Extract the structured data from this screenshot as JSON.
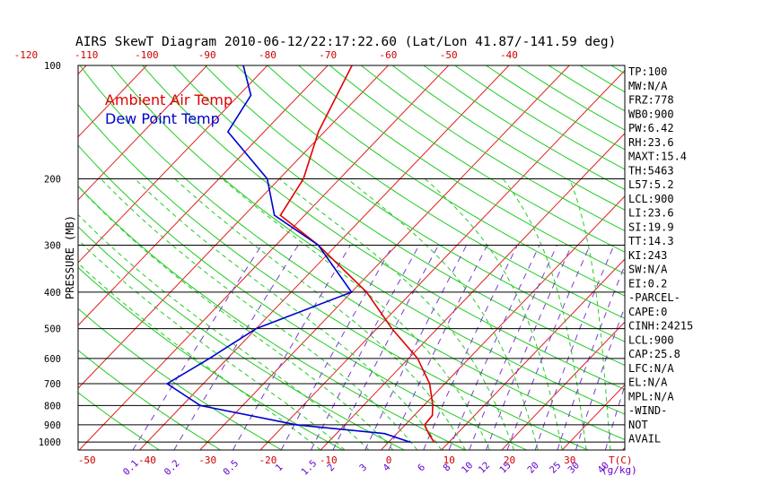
{
  "chart_data": {
    "type": "line",
    "title": "AIRS SkewT Diagram 2010-06-12/22:17:22.60 (Lat/Lon 41.87/-141.59 deg)",
    "ylabel": "PRESSURE (MB)",
    "x_unit_label": "T(C)",
    "mixing_unit_label": "(g/kg)",
    "pressure_ticks": [
      100,
      200,
      300,
      400,
      500,
      600,
      700,
      800,
      900,
      1000
    ],
    "bottom_temp_ticks": [
      -50,
      -40,
      -30,
      -20,
      -10,
      0,
      10,
      20,
      30
    ],
    "top_temp_ticks": [
      -120,
      -110,
      -100,
      -90,
      -80,
      -70,
      -60,
      -50,
      -40
    ],
    "mixing_ratio_labels": [
      "0.1",
      "0.2",
      "0.5",
      "1",
      "1.5",
      "2",
      "3",
      "4",
      "6",
      "8",
      "10",
      "12",
      "15",
      "20",
      "25",
      "30",
      "40"
    ],
    "mixing_ratio_values": [
      0.1,
      0.2,
      0.5,
      1,
      1.5,
      2,
      3,
      4,
      6,
      8,
      10,
      12,
      15,
      20,
      25,
      30,
      40
    ],
    "legend": [
      "Ambient Air Temp",
      "Dew Point Temp"
    ],
    "series": [
      {
        "name": "Ambient Air Temp",
        "color": "#e00000",
        "points": [
          {
            "p": 1000,
            "t": 7.5
          },
          {
            "p": 950,
            "t": 5.3
          },
          {
            "p": 900,
            "t": 3.2
          },
          {
            "p": 850,
            "t": 3.0
          },
          {
            "p": 800,
            "t": 1.5
          },
          {
            "p": 700,
            "t": -2.5
          },
          {
            "p": 600,
            "t": -8.5
          },
          {
            "p": 500,
            "t": -17.5
          },
          {
            "p": 400,
            "t": -27.5
          },
          {
            "p": 300,
            "t": -43
          },
          {
            "p": 250,
            "t": -54
          },
          {
            "p": 200,
            "t": -56
          },
          {
            "p": 150,
            "t": -61
          },
          {
            "p": 100,
            "t": -66
          }
        ]
      },
      {
        "name": "Dew Point Temp",
        "color": "#0000d0",
        "points": [
          {
            "p": 1000,
            "t": 3.5
          },
          {
            "p": 950,
            "t": -2
          },
          {
            "p": 900,
            "t": -18
          },
          {
            "p": 800,
            "t": -37
          },
          {
            "p": 700,
            "t": -46
          },
          {
            "p": 600,
            "t": -43
          },
          {
            "p": 500,
            "t": -40
          },
          {
            "p": 400,
            "t": -30
          },
          {
            "p": 300,
            "t": -43
          },
          {
            "p": 250,
            "t": -55
          },
          {
            "p": 200,
            "t": -62
          },
          {
            "p": 150,
            "t": -76
          },
          {
            "p": 120,
            "t": -78
          },
          {
            "p": 100,
            "t": -84
          }
        ]
      }
    ],
    "indices": [
      "TP:100",
      "MW:N/A",
      "FRZ:778",
      "WB0:900",
      "PW:6.42",
      "RH:23.6",
      "MAXT:15.4",
      "TH:5463",
      "L57:5.2",
      "LCL:900",
      "LI:23.6",
      "SI:19.9",
      "TT:14.3",
      "KI:243",
      "SW:N/A",
      "EI:0.2",
      "-PARCEL-",
      "CAPE:0",
      "CINH:24215",
      "LCL:900",
      "CAP:25.8",
      "LFC:N/A",
      "EL:N/A",
      "MPL:N/A",
      "-WIND-",
      "NOT",
      "AVAIL"
    ],
    "grid": true,
    "legend_position": "top-left"
  }
}
